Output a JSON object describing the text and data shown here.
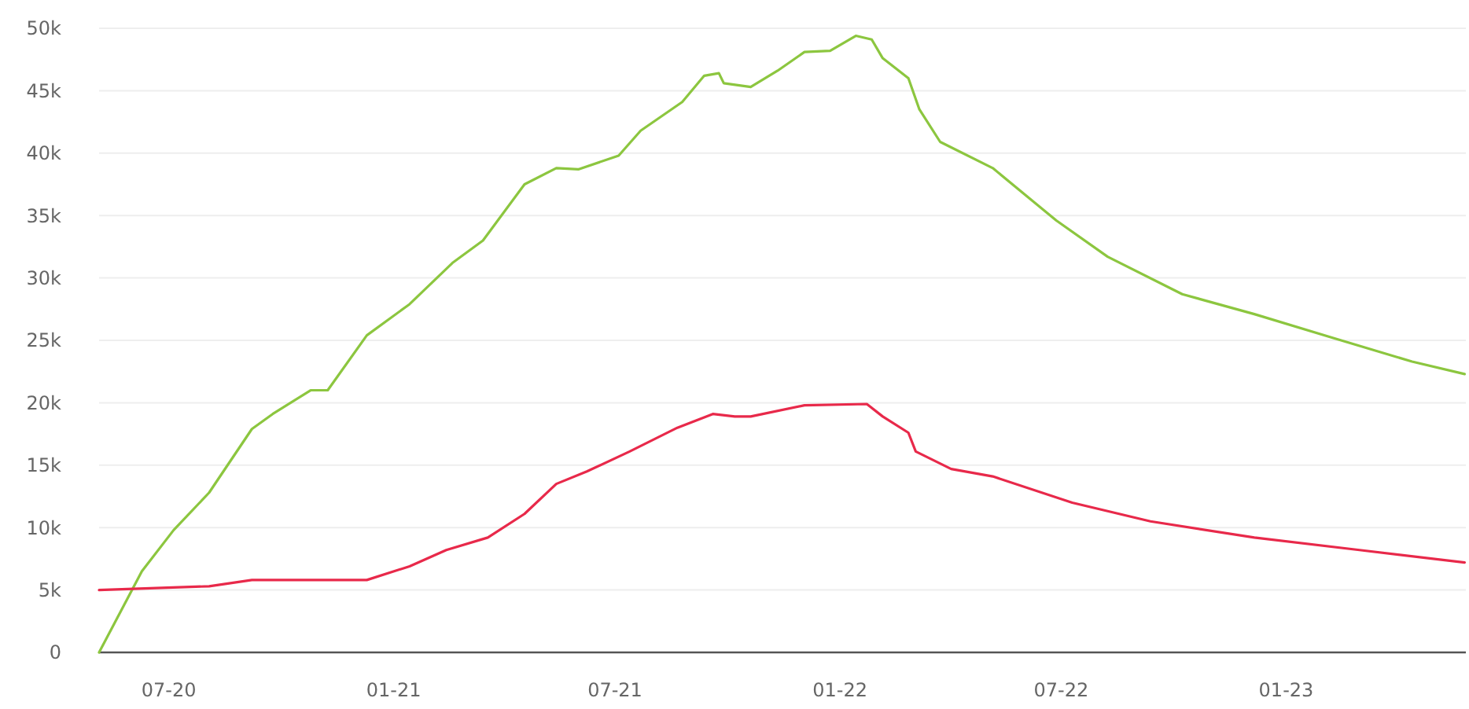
{
  "chart_data": {
    "type": "line",
    "xlim": [
      "2020-05-05",
      "2023-05-28"
    ],
    "xticks": [
      {
        "value": "2020-07-01",
        "label": "07-20"
      },
      {
        "value": "2021-01-01",
        "label": "01-21"
      },
      {
        "value": "2021-07-01",
        "label": "07-21"
      },
      {
        "value": "2022-01-01",
        "label": "01-22"
      },
      {
        "value": "2022-07-01",
        "label": "07-22"
      },
      {
        "value": "2023-01-01",
        "label": "01-23"
      }
    ],
    "ylim": [
      0,
      50000
    ],
    "yticks": [
      {
        "value": 0,
        "label": "0"
      },
      {
        "value": 5000,
        "label": "5k"
      },
      {
        "value": 10000,
        "label": "10k"
      },
      {
        "value": 15000,
        "label": "15k"
      },
      {
        "value": 20000,
        "label": "20k"
      },
      {
        "value": 25000,
        "label": "25k"
      },
      {
        "value": 30000,
        "label": "30k"
      },
      {
        "value": 35000,
        "label": "35k"
      },
      {
        "value": 40000,
        "label": "40k"
      },
      {
        "value": 45000,
        "label": "45k"
      },
      {
        "value": 50000,
        "label": "50k"
      }
    ],
    "grid": "y",
    "marker": "none",
    "line_style": "solid",
    "series": [
      {
        "color": "#8cc63f",
        "x": [
          "2020-05-05",
          "2020-06-09",
          "2020-07-05",
          "2020-08-03",
          "2020-09-07",
          "2020-09-24",
          "2020-10-25",
          "2020-11-08",
          "2020-12-10",
          "2021-01-14",
          "2021-02-18",
          "2021-03-15",
          "2021-04-18",
          "2021-05-14",
          "2021-06-01",
          "2021-07-04",
          "2021-07-22",
          "2021-08-25",
          "2021-09-12",
          "2021-09-24",
          "2021-09-28",
          "2021-10-20",
          "2021-11-11",
          "2021-12-03",
          "2021-12-24",
          "2022-01-14",
          "2022-01-27",
          "2022-02-05",
          "2022-02-26",
          "2022-03-07",
          "2022-03-24",
          "2022-05-06",
          "2022-06-27",
          "2022-08-08",
          "2022-10-08",
          "2022-12-06",
          "2023-02-08",
          "2023-04-14",
          "2023-05-27"
        ],
        "values": [
          0,
          6500,
          9800,
          12800,
          17900,
          19100,
          21000,
          21000,
          25400,
          27900,
          31200,
          33000,
          37500,
          38800,
          38700,
          39800,
          41800,
          44100,
          46200,
          46400,
          45600,
          45300,
          46600,
          48100,
          48200,
          49400,
          49100,
          47600,
          46000,
          43500,
          40900,
          38800,
          34600,
          31700,
          28700,
          27100,
          25200,
          23300,
          22300
        ]
      },
      {
        "color": "#e8294a",
        "x": [
          "2020-05-05",
          "2020-08-03",
          "2020-09-07",
          "2020-12-10",
          "2021-01-14",
          "2021-02-13",
          "2021-03-19",
          "2021-04-18",
          "2021-05-14",
          "2021-06-08",
          "2021-07-13",
          "2021-08-21",
          "2021-09-19",
          "2021-10-07",
          "2021-10-20",
          "2021-12-03",
          "2022-01-23",
          "2022-02-05",
          "2022-02-26",
          "2022-03-04",
          "2022-04-02",
          "2022-05-06",
          "2022-07-10",
          "2022-09-12",
          "2022-12-06",
          "2023-03-02",
          "2023-05-27"
        ],
        "values": [
          5000,
          5300,
          5800,
          5800,
          6900,
          8200,
          9200,
          11100,
          13500,
          14500,
          16100,
          18000,
          19100,
          18900,
          18900,
          19800,
          19900,
          18900,
          17600,
          16100,
          14700,
          14100,
          12000,
          10500,
          9200,
          8200,
          7200
        ]
      }
    ]
  }
}
